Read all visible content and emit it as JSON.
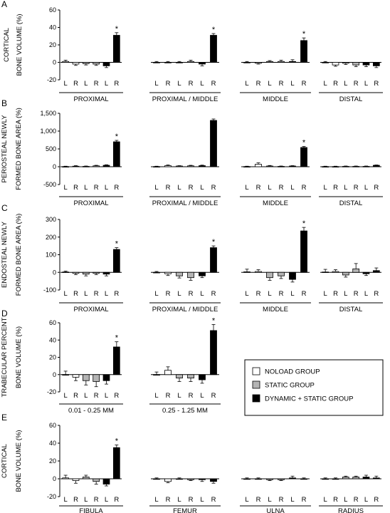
{
  "legend": {
    "items": [
      {
        "label": "NOLOAD GROUP",
        "color": "#ffffff"
      },
      {
        "label": "STATIC GROUP",
        "color": "#b4b4b4"
      },
      {
        "label": "DYNAMIC + STATIC GROUP",
        "color": "#000000"
      }
    ]
  },
  "chart_data": [
    {
      "panel": "A",
      "type": "bar",
      "ylabel_lines": [
        "CORTICAL",
        "BONE VOLUME (%)"
      ],
      "ylim": [
        -20,
        60
      ],
      "yticks": [
        -20,
        0,
        20,
        40,
        60
      ],
      "ytick_labels": [
        "-20",
        "0",
        "20",
        "40",
        "60"
      ],
      "bar_labels": [
        "L",
        "R",
        "L",
        "R",
        "L",
        "R"
      ],
      "groups": [
        {
          "name": "PROXIMAL",
          "values": [
            1,
            -2,
            -1.5,
            -2,
            -4,
            31
          ],
          "errors": [
            1.5,
            1.5,
            1.5,
            1.5,
            2,
            3
          ],
          "significant": [
            false,
            false,
            false,
            false,
            false,
            true
          ]
        },
        {
          "name": "PROXIMAL / MIDDLE",
          "values": [
            0,
            0,
            0,
            1,
            -2,
            31
          ],
          "errors": [
            1,
            1,
            1,
            1.5,
            2,
            2
          ],
          "significant": [
            false,
            false,
            false,
            false,
            false,
            true
          ]
        },
        {
          "name": "MIDDLE",
          "values": [
            0,
            -1,
            1,
            1,
            1,
            25
          ],
          "errors": [
            1,
            1,
            1,
            1.5,
            2,
            3
          ],
          "significant": [
            false,
            false,
            false,
            false,
            false,
            true
          ]
        },
        {
          "name": "DISTAL",
          "values": [
            0,
            -3,
            -1,
            -3,
            -3,
            -4
          ],
          "errors": [
            1,
            1.5,
            1.5,
            2,
            2,
            2
          ],
          "significant": [
            false,
            false,
            false,
            false,
            false,
            false
          ]
        }
      ]
    },
    {
      "panel": "B",
      "type": "bar",
      "ylabel_lines": [
        "PERIOSTEAL NEWLY",
        "FORMED BONE AREA (%)"
      ],
      "ylim": [
        -500,
        1500
      ],
      "yticks": [
        -500,
        0,
        500,
        1000,
        1500
      ],
      "ytick_labels": [
        "-500",
        "0",
        "500",
        "1,000",
        "1,500"
      ],
      "bar_labels": [
        "L",
        "R",
        "L",
        "R",
        "L",
        "R"
      ],
      "groups": [
        {
          "name": "PROXIMAL",
          "values": [
            5,
            15,
            10,
            25,
            40,
            700
          ],
          "errors": [
            10,
            15,
            10,
            15,
            15,
            40
          ],
          "significant": [
            false,
            false,
            false,
            false,
            false,
            true
          ]
        },
        {
          "name": "PROXIMAL / MIDDLE",
          "values": [
            5,
            30,
            20,
            25,
            30,
            1300
          ],
          "errors": [
            10,
            20,
            10,
            15,
            15,
            40
          ],
          "significant": [
            false,
            false,
            false,
            false,
            false,
            false
          ]
        },
        {
          "name": "MIDDLE",
          "values": [
            5,
            70,
            20,
            10,
            20,
            540
          ],
          "errors": [
            10,
            40,
            15,
            10,
            10,
            30
          ],
          "significant": [
            false,
            false,
            false,
            false,
            false,
            true
          ]
        },
        {
          "name": "DISTAL",
          "values": [
            5,
            5,
            10,
            10,
            10,
            40
          ],
          "errors": [
            10,
            10,
            10,
            10,
            10,
            10
          ],
          "significant": [
            false,
            false,
            false,
            false,
            false,
            false
          ]
        }
      ]
    },
    {
      "panel": "C",
      "type": "bar",
      "ylabel_lines": [
        "ENDOSTEAL NEWLY",
        "FORMED BONE AREA (%)"
      ],
      "ylim": [
        -100,
        300
      ],
      "yticks": [
        -100,
        0,
        100,
        200,
        300
      ],
      "ytick_labels": [
        "-100",
        "0",
        "100",
        "200",
        "300"
      ],
      "bar_labels": [
        "L",
        "R",
        "L",
        "R",
        "L",
        "R"
      ],
      "groups": [
        {
          "name": "PROXIMAL",
          "values": [
            2,
            -5,
            -10,
            -5,
            -10,
            130
          ],
          "errors": [
            5,
            8,
            10,
            8,
            10,
            10
          ],
          "significant": [
            false,
            false,
            false,
            false,
            false,
            true
          ]
        },
        {
          "name": "PROXIMAL / MIDDLE",
          "values": [
            0,
            -8,
            -20,
            -30,
            -20,
            140
          ],
          "errors": [
            5,
            10,
            12,
            15,
            10,
            10
          ],
          "significant": [
            false,
            false,
            false,
            false,
            false,
            true
          ]
        },
        {
          "name": "MIDDLE",
          "values": [
            3,
            5,
            -30,
            -20,
            -40,
            235
          ],
          "errors": [
            15,
            10,
            15,
            15,
            15,
            20
          ],
          "significant": [
            false,
            false,
            false,
            false,
            false,
            true
          ]
        },
        {
          "name": "DISTAL",
          "values": [
            2,
            5,
            -15,
            20,
            -8,
            10
          ],
          "errors": [
            15,
            10,
            12,
            30,
            10,
            15
          ],
          "significant": [
            false,
            false,
            false,
            false,
            false,
            false
          ]
        }
      ]
    },
    {
      "panel": "D",
      "type": "bar",
      "ylabel_lines": [
        "TRABECULAR PERCENT",
        "BONE VOLUME (%)"
      ],
      "ylim": [
        -20,
        60
      ],
      "yticks": [
        -20,
        0,
        20,
        40,
        60
      ],
      "ytick_labels": [
        "-20",
        "0",
        "20",
        "40",
        "60"
      ],
      "bar_labels": [
        "L",
        "R",
        "L",
        "R",
        "L",
        "R"
      ],
      "groups": [
        {
          "name": "0.01 - 0.25 MM",
          "values": [
            0,
            -3,
            -7,
            -8,
            -7,
            32
          ],
          "errors": [
            4,
            4,
            5,
            6,
            4,
            6
          ],
          "significant": [
            false,
            false,
            false,
            false,
            false,
            true
          ]
        },
        {
          "name": "0.25 - 1.25 MM",
          "values": [
            0,
            5,
            -4,
            -4,
            -6,
            51
          ],
          "errors": [
            3,
            4,
            4,
            4,
            4,
            7
          ],
          "significant": [
            false,
            false,
            false,
            false,
            false,
            true
          ]
        }
      ]
    },
    {
      "panel": "E",
      "type": "bar",
      "ylabel_lines": [
        "CORTICAL",
        "BONE VOLUME (%)"
      ],
      "ylim": [
        -20,
        60
      ],
      "yticks": [
        -20,
        0,
        20,
        40,
        60
      ],
      "ytick_labels": [
        "-20",
        "0",
        "20",
        "40",
        "60"
      ],
      "bar_labels": [
        "L",
        "R",
        "L",
        "R",
        "L",
        "R"
      ],
      "groups": [
        {
          "name": "FIBULA",
          "values": [
            1,
            -2,
            2,
            -3,
            -6,
            35
          ],
          "errors": [
            3,
            3,
            2,
            3,
            2,
            3
          ],
          "significant": [
            false,
            false,
            false,
            false,
            false,
            true
          ]
        },
        {
          "name": "FEMUR",
          "values": [
            0,
            -3,
            0,
            -1,
            -1,
            -3
          ],
          "errors": [
            1,
            1.5,
            1,
            1,
            2,
            2
          ],
          "significant": [
            false,
            false,
            false,
            false,
            false,
            false
          ]
        },
        {
          "name": "ULNA",
          "values": [
            0,
            0,
            -1,
            -1,
            1,
            0
          ],
          "errors": [
            1,
            1,
            1,
            1,
            2,
            1
          ],
          "significant": [
            false,
            false,
            false,
            false,
            false,
            false
          ]
        },
        {
          "name": "RADIUS",
          "values": [
            0,
            0,
            2,
            2,
            2,
            1
          ],
          "errors": [
            1,
            1,
            1,
            1,
            2,
            2
          ],
          "significant": [
            false,
            false,
            false,
            false,
            false,
            false
          ]
        }
      ]
    }
  ]
}
